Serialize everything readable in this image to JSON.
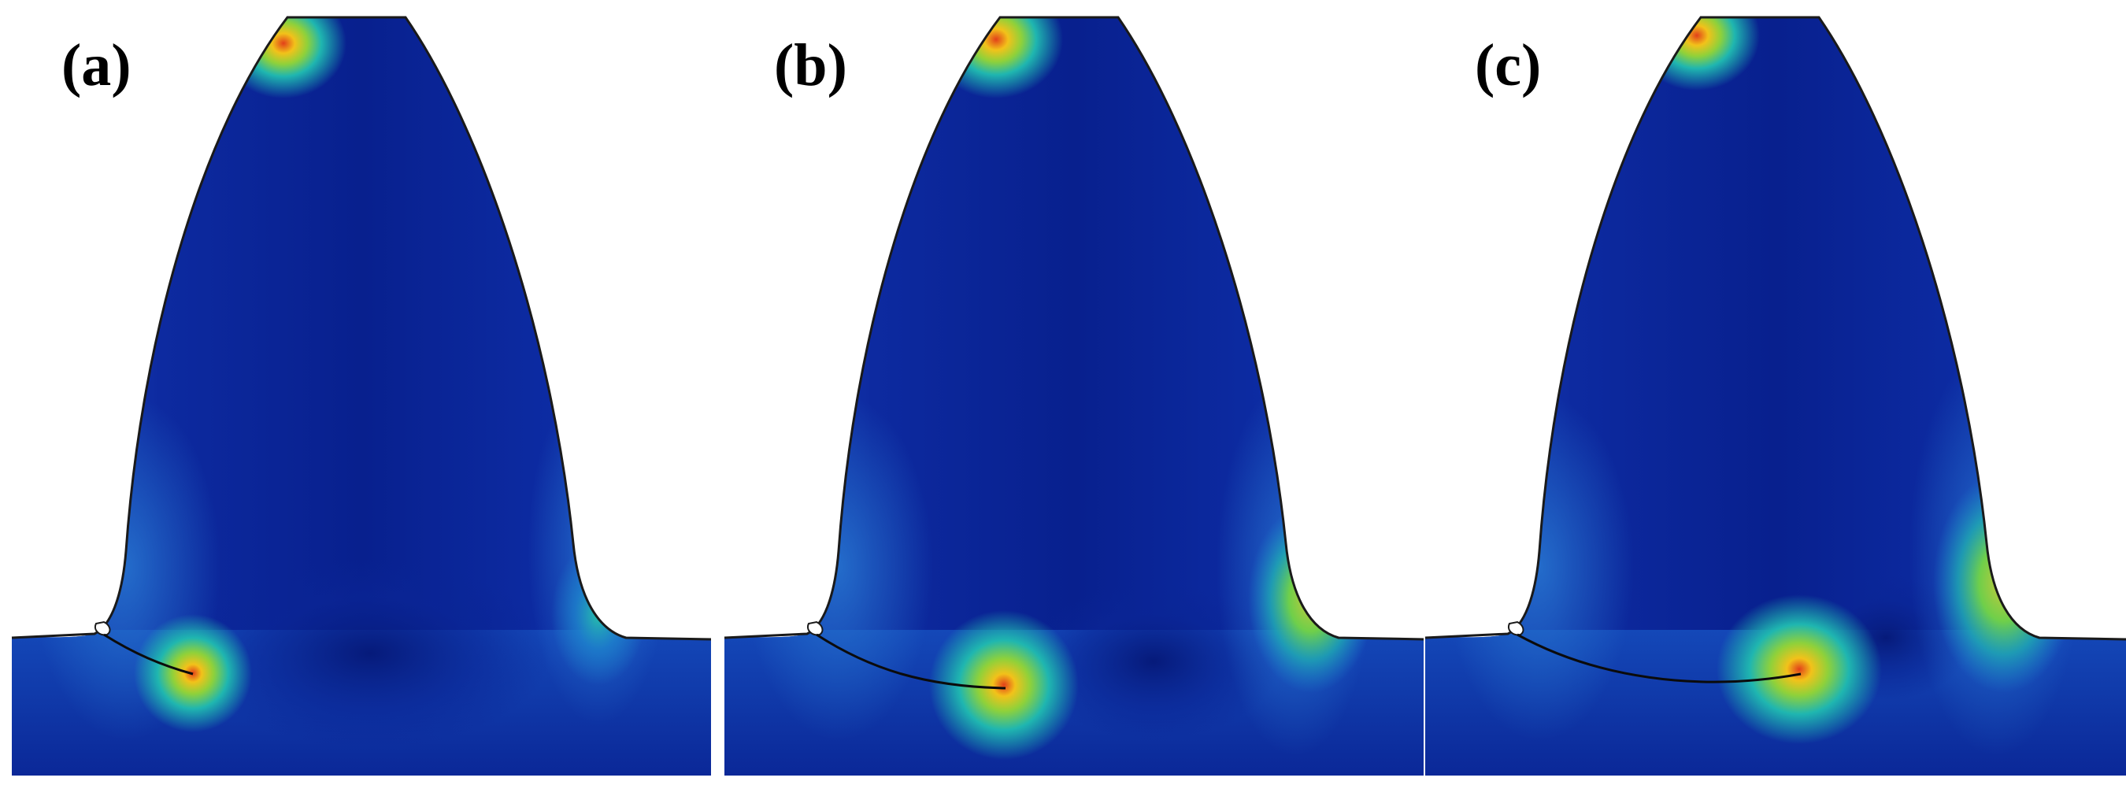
{
  "figure": {
    "panels": [
      {
        "id": "a",
        "label": "(a)"
      },
      {
        "id": "b",
        "label": "(b)"
      },
      {
        "id": "c",
        "label": "(c)"
      }
    ],
    "colors": {
      "background": "#ffffff",
      "stress_low": "#0a1f8f",
      "stress_mid_low": "#1a5fd0",
      "stress_mid": "#1fb6b0",
      "stress_mid_high": "#8fd13a",
      "stress_high": "#f2c21a",
      "stress_peak": "#e2401a",
      "outline": "#1a1a1a",
      "crack": "#0b0b0b"
    }
  }
}
